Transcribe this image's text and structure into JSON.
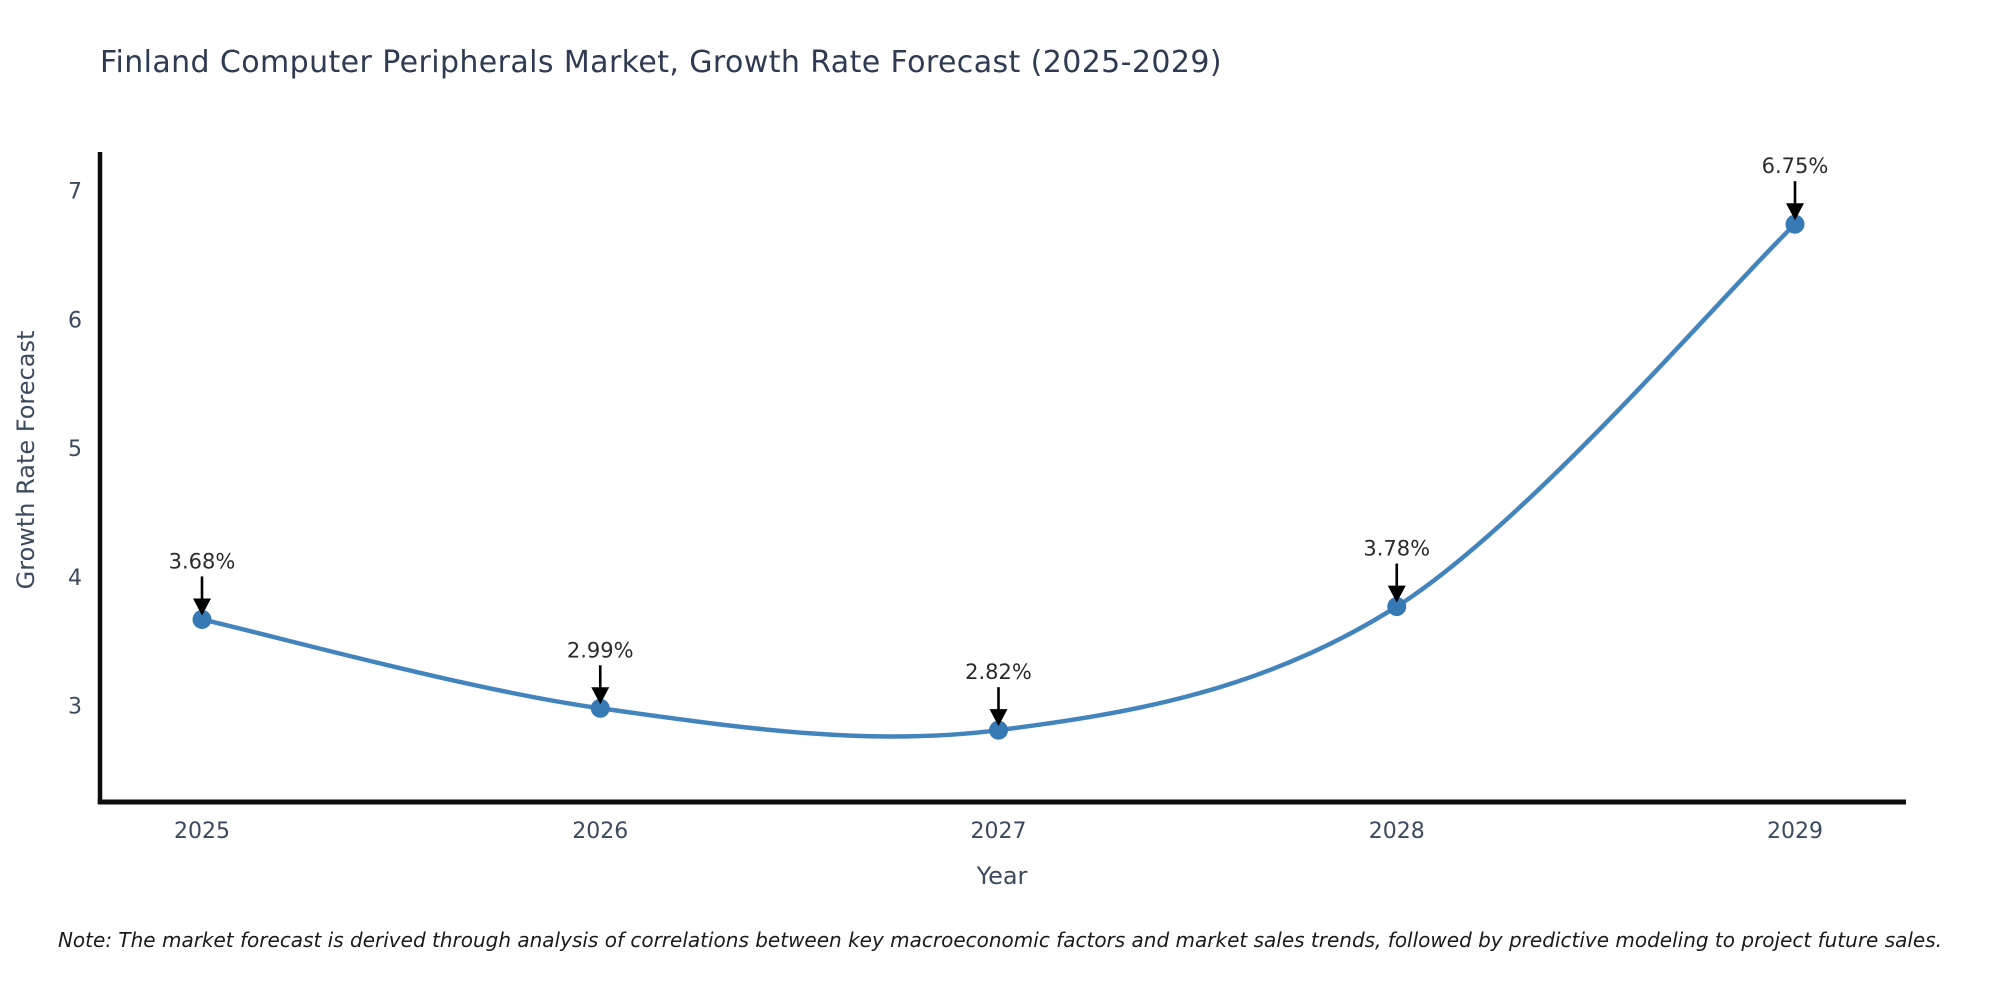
{
  "title": "Finland Computer Peripherals Market, Growth Rate Forecast (2025-2029)",
  "note": "Note: The market forecast is derived through analysis of correlations between key macroeconomic factors and market sales trends, followed by predictive modeling to project future sales.",
  "chart_data": {
    "type": "line",
    "title": "Finland Computer Peripherals Market, Growth Rate Forecast (2025-2029)",
    "xlabel": "Year",
    "ylabel": "Growth Rate Forecast",
    "x": [
      2025,
      2026,
      2027,
      2028,
      2029
    ],
    "values": [
      3.68,
      2.99,
      2.82,
      3.78,
      6.75
    ],
    "point_labels": [
      "3.68%",
      "2.99%",
      "2.82%",
      "3.78%",
      "6.75%"
    ],
    "yticks": [
      3,
      4,
      5,
      6,
      7
    ],
    "ylim": [
      2.26,
      7.3
    ],
    "grid": false,
    "legend": "none",
    "smooth_curve": true,
    "annotation_style": "black-down-arrow",
    "colors": {
      "line": "#4484bc",
      "marker": "#3679b5",
      "arrow": "#000000",
      "title": "#2f3b52",
      "tick": "#3b4a5f",
      "axis_title": "#3b4a5f",
      "note": "#1a1a1a",
      "spine": "#0d0d0d",
      "background": "#ffffff"
    }
  }
}
